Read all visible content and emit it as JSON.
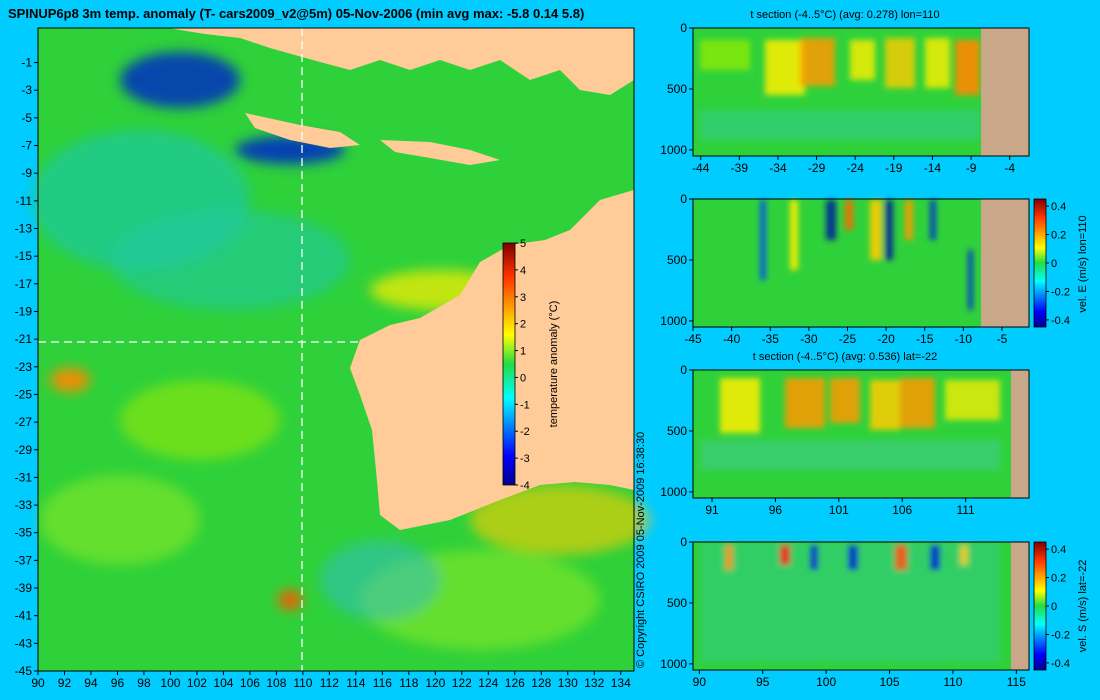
{
  "title": "SPINUP6p8 3m temp. anomaly (T- cars2009_v2@5m) 05-Nov-2006 (min avg max: -5.8 0.14 5.8)",
  "copyright": "© Copyright CSIRO 2009  05-Nov-2009 16:38:30",
  "colors": {
    "background": "#00ccff",
    "land": "#ffcc99",
    "section_land": "#c8a888"
  },
  "chart_data": [
    {
      "type": "heatmap",
      "name": "main-map",
      "x": [
        90,
        92,
        94,
        96,
        98,
        100,
        102,
        104,
        106,
        108,
        110,
        112,
        114,
        116,
        118,
        120,
        122,
        124,
        126,
        128,
        130,
        132,
        134
      ],
      "y": [
        -1,
        -3,
        -5,
        -7,
        -9,
        -11,
        -13,
        -15,
        -17,
        -19,
        -21,
        -23,
        -25,
        -27,
        -29,
        -31,
        -33,
        -35,
        -37,
        -39,
        -41,
        -43,
        -45
      ],
      "xlim": [
        90,
        135
      ],
      "ylim": [
        -45,
        1.5
      ],
      "section_lines": {
        "lon": 110,
        "lat": -22
      },
      "colorbar": {
        "label": "temperature anomaly (°C)",
        "ticks": [
          5,
          4,
          3,
          2,
          1,
          0,
          -1,
          -2,
          -3,
          -4
        ],
        "range": [
          -4,
          5
        ]
      }
    },
    {
      "type": "heatmap",
      "name": "t-section-lon",
      "title": "t section (-4..5°C) (avg: 0.278) lon=110",
      "x": [
        -44,
        -39,
        -34,
        -29,
        -24,
        -19,
        -14,
        -9,
        -4
      ],
      "y": [
        0,
        500,
        1000
      ],
      "xlim": [
        -45,
        -1.5
      ],
      "ylim": [
        1050,
        0
      ]
    },
    {
      "type": "heatmap",
      "name": "vel-e-section",
      "x": [
        -45,
        -40,
        -35,
        -30,
        -25,
        -20,
        -15,
        -10,
        -5
      ],
      "y": [
        0,
        500,
        1000
      ],
      "xlim": [
        -45,
        -1.5
      ],
      "ylim": [
        1050,
        0
      ],
      "colorbar": {
        "label": "vel. E (m/s) lon=110",
        "ticks": [
          0.4,
          0.2,
          0,
          -0.2,
          -0.4
        ],
        "range": [
          -0.45,
          0.45
        ]
      }
    },
    {
      "type": "heatmap",
      "name": "t-section-lat",
      "title": "t section (-4..5°C) (avg: 0.536) lat=-22",
      "x": [
        91,
        96,
        101,
        106,
        111
      ],
      "y": [
        0,
        500,
        1000
      ],
      "xlim": [
        89.5,
        116
      ],
      "ylim": [
        1050,
        0
      ]
    },
    {
      "type": "heatmap",
      "name": "vel-s-section",
      "x": [
        90,
        95,
        100,
        105,
        110,
        115
      ],
      "y": [
        0,
        500,
        1000
      ],
      "xlim": [
        89.5,
        116
      ],
      "ylim": [
        1050,
        0
      ],
      "colorbar": {
        "label": "vel. S (m/s) lat=-22",
        "ticks": [
          0.4,
          0.2,
          0,
          -0.2,
          -0.4
        ],
        "range": [
          -0.45,
          0.45
        ]
      }
    }
  ]
}
